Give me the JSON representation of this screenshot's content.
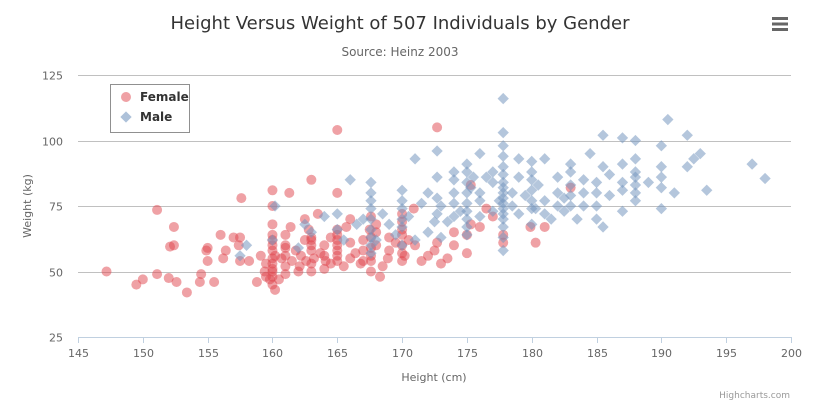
{
  "chart_data": {
    "type": "scatter",
    "title": "Height Versus Weight of 507 Individuals by Gender",
    "subtitle": "Source: Heinz 2003",
    "xlabel": "Height (cm)",
    "ylabel": "Weight (kg)",
    "xlim": [
      145,
      200
    ],
    "ylim": [
      25,
      125
    ],
    "xticks": [
      145,
      150,
      155,
      160,
      165,
      170,
      175,
      180,
      185,
      190,
      195,
      200
    ],
    "yticks": [
      25,
      50,
      75,
      100,
      125
    ],
    "grid": "horizontal",
    "legend_position": "top-left",
    "series": [
      {
        "name": "Female",
        "marker": "circle",
        "color": "#e0434b",
        "points": [
          [
            147.2,
            50
          ],
          [
            149.5,
            45
          ],
          [
            150,
            47
          ],
          [
            151.1,
            49
          ],
          [
            151.1,
            73.5
          ],
          [
            152,
            47.5
          ],
          [
            152.1,
            59.5
          ],
          [
            152.4,
            60
          ],
          [
            152.4,
            67
          ],
          [
            152.6,
            46
          ],
          [
            153.4,
            42
          ],
          [
            154.4,
            46
          ],
          [
            154.5,
            49
          ],
          [
            154.9,
            58
          ],
          [
            155,
            54
          ],
          [
            155,
            59
          ],
          [
            155.5,
            46
          ],
          [
            156,
            64
          ],
          [
            156.2,
            55
          ],
          [
            156.4,
            58
          ],
          [
            157,
            63
          ],
          [
            157.4,
            60
          ],
          [
            157.5,
            54
          ],
          [
            157.5,
            63
          ],
          [
            157.6,
            78
          ],
          [
            158.2,
            54
          ],
          [
            158.8,
            46
          ],
          [
            159.1,
            56
          ],
          [
            159.4,
            50
          ],
          [
            159.5,
            48
          ],
          [
            159.5,
            53
          ],
          [
            159.8,
            47
          ],
          [
            160,
            45
          ],
          [
            160,
            48
          ],
          [
            160,
            50
          ],
          [
            160,
            51
          ],
          [
            160,
            53
          ],
          [
            160,
            55
          ],
          [
            160,
            58
          ],
          [
            160,
            60
          ],
          [
            160,
            62
          ],
          [
            160,
            64
          ],
          [
            160,
            68
          ],
          [
            160,
            75
          ],
          [
            160,
            81
          ],
          [
            160.2,
            43
          ],
          [
            160.2,
            56
          ],
          [
            160.5,
            47
          ],
          [
            160.7,
            55
          ],
          [
            161,
            49
          ],
          [
            161,
            52
          ],
          [
            161,
            56
          ],
          [
            161,
            60
          ],
          [
            161,
            64
          ],
          [
            161.3,
            80
          ],
          [
            161.4,
            67
          ],
          [
            161.5,
            54
          ],
          [
            161.8,
            58
          ],
          [
            162,
            50
          ],
          [
            162.1,
            52
          ],
          [
            162.2,
            56
          ],
          [
            162.5,
            62
          ],
          [
            162.5,
            70
          ],
          [
            162.6,
            54
          ],
          [
            162.8,
            66
          ],
          [
            163,
            50
          ],
          [
            163,
            53
          ],
          [
            163,
            58
          ],
          [
            163,
            60
          ],
          [
            163,
            63
          ],
          [
            163,
            85
          ],
          [
            163.2,
            55
          ],
          [
            163.5,
            72
          ],
          [
            163.7,
            57
          ],
          [
            164,
            51
          ],
          [
            164,
            56
          ],
          [
            164,
            60
          ],
          [
            164.1,
            54
          ],
          [
            164.5,
            53
          ],
          [
            164.5,
            63
          ],
          [
            165,
            54
          ],
          [
            165,
            56
          ],
          [
            165,
            58
          ],
          [
            165,
            60
          ],
          [
            165,
            62
          ],
          [
            165,
            64
          ],
          [
            165,
            66
          ],
          [
            165,
            80
          ],
          [
            165,
            104
          ],
          [
            165.5,
            52
          ],
          [
            165.7,
            67
          ],
          [
            166,
            55
          ],
          [
            166,
            61
          ],
          [
            166,
            70
          ],
          [
            166.4,
            57
          ],
          [
            166.8,
            53
          ],
          [
            167,
            54
          ],
          [
            167,
            58
          ],
          [
            167,
            62
          ],
          [
            167.5,
            66
          ],
          [
            167.6,
            50
          ],
          [
            167.6,
            54
          ],
          [
            167.6,
            56
          ],
          [
            167.6,
            59
          ],
          [
            167.6,
            63
          ],
          [
            167.6,
            71
          ],
          [
            168,
            60
          ],
          [
            168,
            65
          ],
          [
            168.3,
            48
          ],
          [
            168.5,
            52
          ],
          [
            168.9,
            55
          ],
          [
            169,
            58
          ],
          [
            169,
            63
          ],
          [
            169.5,
            61
          ],
          [
            170,
            54
          ],
          [
            170,
            57
          ],
          [
            170,
            60
          ],
          [
            170,
            64
          ],
          [
            170,
            66
          ],
          [
            170,
            69
          ],
          [
            170,
            72
          ],
          [
            170.2,
            56
          ],
          [
            170.5,
            62
          ],
          [
            170.9,
            74
          ],
          [
            171,
            60
          ],
          [
            171.5,
            54
          ],
          [
            172,
            56
          ],
          [
            172.5,
            58
          ],
          [
            172.7,
            105
          ],
          [
            172.7,
            61
          ],
          [
            173,
            53
          ],
          [
            173.5,
            55
          ],
          [
            174,
            60
          ],
          [
            174,
            65
          ],
          [
            175,
            57
          ],
          [
            175,
            64
          ],
          [
            175.3,
            68
          ],
          [
            175.3,
            83
          ],
          [
            176,
            67
          ],
          [
            176.5,
            74
          ],
          [
            177,
            71
          ],
          [
            177.8,
            61
          ],
          [
            177.8,
            64
          ],
          [
            179.9,
            67
          ],
          [
            180.3,
            61
          ],
          [
            181,
            67
          ],
          [
            183,
            82
          ],
          [
            168,
            68
          ],
          [
            163,
            62
          ],
          [
            161,
            59
          ]
        ]
      },
      {
        "name": "Male",
        "marker": "diamond",
        "color": "#7798bf",
        "points": [
          [
            157.5,
            56
          ],
          [
            158,
            60
          ],
          [
            160,
            62
          ],
          [
            160.2,
            75
          ],
          [
            162,
            59
          ],
          [
            162.5,
            68
          ],
          [
            163,
            65
          ],
          [
            164,
            71
          ],
          [
            165,
            66
          ],
          [
            165,
            72
          ],
          [
            165.5,
            62
          ],
          [
            166,
            85
          ],
          [
            166.5,
            68
          ],
          [
            167,
            70
          ],
          [
            167.6,
            57
          ],
          [
            167.6,
            60
          ],
          [
            167.6,
            63
          ],
          [
            167.6,
            66
          ],
          [
            167.6,
            70
          ],
          [
            167.6,
            74
          ],
          [
            167.6,
            77
          ],
          [
            167.6,
            80
          ],
          [
            167.6,
            84
          ],
          [
            168,
            62
          ],
          [
            168.5,
            72
          ],
          [
            169,
            68
          ],
          [
            169.5,
            64
          ],
          [
            170,
            60
          ],
          [
            170,
            67
          ],
          [
            170,
            70
          ],
          [
            170,
            74
          ],
          [
            170,
            77
          ],
          [
            170,
            81
          ],
          [
            170.5,
            71
          ],
          [
            171,
            62
          ],
          [
            171,
            93
          ],
          [
            171.5,
            76
          ],
          [
            172,
            65
          ],
          [
            172,
            80
          ],
          [
            172.5,
            69
          ],
          [
            172.7,
            72
          ],
          [
            172.7,
            78
          ],
          [
            172.7,
            86
          ],
          [
            172.7,
            96
          ],
          [
            173,
            63
          ],
          [
            173,
            75
          ],
          [
            173.5,
            69
          ],
          [
            174,
            71
          ],
          [
            174,
            76
          ],
          [
            174,
            80
          ],
          [
            174,
            85
          ],
          [
            174,
            88
          ],
          [
            174.5,
            73
          ],
          [
            175,
            64
          ],
          [
            175,
            67
          ],
          [
            175,
            70
          ],
          [
            175,
            73
          ],
          [
            175,
            76
          ],
          [
            175,
            80
          ],
          [
            175,
            84
          ],
          [
            175,
            88
          ],
          [
            175,
            91
          ],
          [
            175.3,
            82
          ],
          [
            175.5,
            86
          ],
          [
            176,
            71
          ],
          [
            176,
            77
          ],
          [
            176,
            80
          ],
          [
            176,
            95
          ],
          [
            176.5,
            86
          ],
          [
            177,
            73
          ],
          [
            177,
            84
          ],
          [
            177,
            88
          ],
          [
            177.5,
            77
          ],
          [
            177.8,
            58
          ],
          [
            177.8,
            63
          ],
          [
            177.8,
            67
          ],
          [
            177.8,
            70
          ],
          [
            177.8,
            72
          ],
          [
            177.8,
            74
          ],
          [
            177.8,
            76
          ],
          [
            177.8,
            78
          ],
          [
            177.8,
            80
          ],
          [
            177.8,
            82
          ],
          [
            177.8,
            84
          ],
          [
            177.8,
            87
          ],
          [
            177.8,
            90
          ],
          [
            177.8,
            94
          ],
          [
            177.8,
            98
          ],
          [
            177.8,
            103
          ],
          [
            177.8,
            116
          ],
          [
            178.5,
            75
          ],
          [
            178.5,
            80
          ],
          [
            179,
            72
          ],
          [
            179,
            86
          ],
          [
            179,
            93
          ],
          [
            179.5,
            79
          ],
          [
            180,
            68
          ],
          [
            180,
            74
          ],
          [
            180,
            77
          ],
          [
            180,
            81
          ],
          [
            180,
            85
          ],
          [
            180,
            88
          ],
          [
            180,
            92
          ],
          [
            180.3,
            74
          ],
          [
            180.5,
            83
          ],
          [
            181,
            72
          ],
          [
            181,
            77
          ],
          [
            181,
            93
          ],
          [
            181.5,
            70
          ],
          [
            182,
            75
          ],
          [
            182,
            80
          ],
          [
            182,
            86
          ],
          [
            182.5,
            73
          ],
          [
            182.5,
            78
          ],
          [
            183,
            75
          ],
          [
            183,
            79
          ],
          [
            183,
            83
          ],
          [
            183,
            88
          ],
          [
            183,
            91
          ],
          [
            183.5,
            70
          ],
          [
            184,
            75
          ],
          [
            184,
            80
          ],
          [
            184,
            85
          ],
          [
            184.5,
            95
          ],
          [
            185,
            70
          ],
          [
            185,
            75
          ],
          [
            185,
            80
          ],
          [
            185,
            84
          ],
          [
            185.5,
            67
          ],
          [
            185.5,
            90
          ],
          [
            185.5,
            102
          ],
          [
            186,
            79
          ],
          [
            186,
            87
          ],
          [
            187,
            73
          ],
          [
            187,
            81
          ],
          [
            187,
            84
          ],
          [
            187,
            91
          ],
          [
            187,
            101
          ],
          [
            188,
            77
          ],
          [
            188,
            80
          ],
          [
            188,
            83
          ],
          [
            188,
            86
          ],
          [
            188,
            88
          ],
          [
            188,
            93
          ],
          [
            188,
            100
          ],
          [
            189,
            84
          ],
          [
            190,
            74
          ],
          [
            190,
            82
          ],
          [
            190,
            86
          ],
          [
            190,
            90
          ],
          [
            190,
            98
          ],
          [
            190.5,
            108
          ],
          [
            191,
            80
          ],
          [
            192,
            90
          ],
          [
            192,
            102
          ],
          [
            192.5,
            93
          ],
          [
            193,
            95
          ],
          [
            193.5,
            81
          ],
          [
            197,
            91
          ],
          [
            198,
            85.5
          ]
        ]
      }
    ]
  },
  "ui": {
    "menu_icon": "hamburger-menu-icon",
    "credits": "Highcharts.com"
  }
}
